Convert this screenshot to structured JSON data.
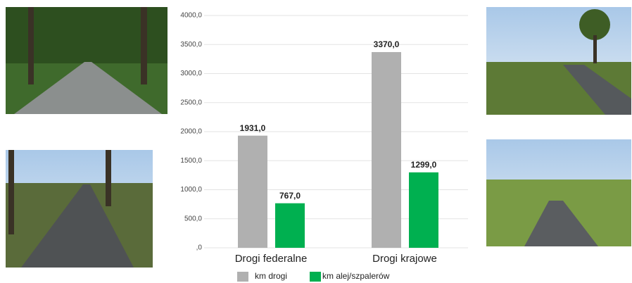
{
  "chart_data": {
    "type": "bar",
    "categories": [
      "Drogi federalne",
      "Drogi krajowe"
    ],
    "series": [
      {
        "name": "km drogi",
        "color": "#b0b0b0",
        "values": [
          1931,
          3370
        ],
        "value_labels": [
          "1931,0",
          "3370,0"
        ]
      },
      {
        "name": "km alej/szpalerów",
        "color": "#00b050",
        "values": [
          767,
          1299
        ],
        "value_labels": [
          "767,0",
          "1299,0"
        ]
      }
    ],
    "ylim": [
      0,
      4000
    ],
    "yticks": [
      {
        "value": 0,
        "label": ",0"
      },
      {
        "value": 500,
        "label": "500,0"
      },
      {
        "value": 1000,
        "label": "1000,0"
      },
      {
        "value": 1500,
        "label": "1500,0"
      },
      {
        "value": 2000,
        "label": "2000,0"
      },
      {
        "value": 2500,
        "label": "2500,0"
      },
      {
        "value": 3000,
        "label": "3000,0"
      },
      {
        "value": 3500,
        "label": "3500,0"
      },
      {
        "value": 4000,
        "label": "4000,0"
      }
    ],
    "grid": true
  }
}
